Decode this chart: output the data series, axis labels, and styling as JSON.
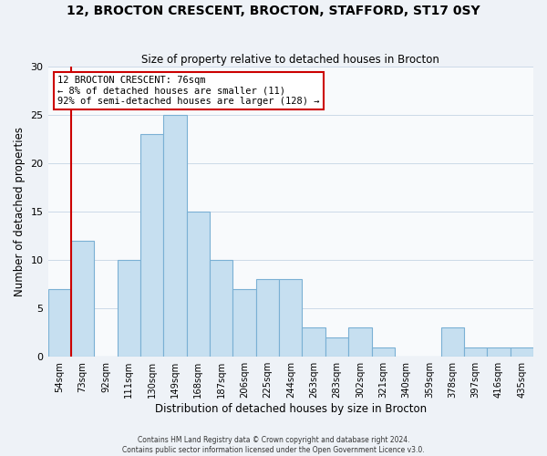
{
  "title": "12, BROCTON CRESCENT, BROCTON, STAFFORD, ST17 0SY",
  "subtitle": "Size of property relative to detached houses in Brocton",
  "xlabel": "Distribution of detached houses by size in Brocton",
  "ylabel": "Number of detached properties",
  "bar_labels": [
    "54sqm",
    "73sqm",
    "92sqm",
    "111sqm",
    "130sqm",
    "149sqm",
    "168sqm",
    "187sqm",
    "206sqm",
    "225sqm",
    "244sqm",
    "263sqm",
    "283sqm",
    "302sqm",
    "321sqm",
    "340sqm",
    "359sqm",
    "378sqm",
    "397sqm",
    "416sqm",
    "435sqm"
  ],
  "bar_values": [
    7,
    12,
    0,
    10,
    23,
    25,
    15,
    10,
    7,
    8,
    8,
    3,
    2,
    3,
    1,
    0,
    0,
    3,
    1,
    1,
    1
  ],
  "bar_color": "#c6dff0",
  "bar_edge_color": "#7ab0d4",
  "ylim": [
    0,
    30
  ],
  "yticks": [
    0,
    5,
    10,
    15,
    20,
    25,
    30
  ],
  "vline_color": "#cc0000",
  "annotation_title": "12 BROCTON CRESCENT: 76sqm",
  "annotation_line1": "← 8% of detached houses are smaller (11)",
  "annotation_line2": "92% of semi-detached houses are larger (128) →",
  "annotation_box_color": "#ffffff",
  "annotation_box_edge_color": "#cc0000",
  "footer_line1": "Contains HM Land Registry data © Crown copyright and database right 2024.",
  "footer_line2": "Contains public sector information licensed under the Open Government Licence v3.0.",
  "background_color": "#eef2f7",
  "plot_background_color": "#f8fafc",
  "grid_color": "#ccd9e8"
}
